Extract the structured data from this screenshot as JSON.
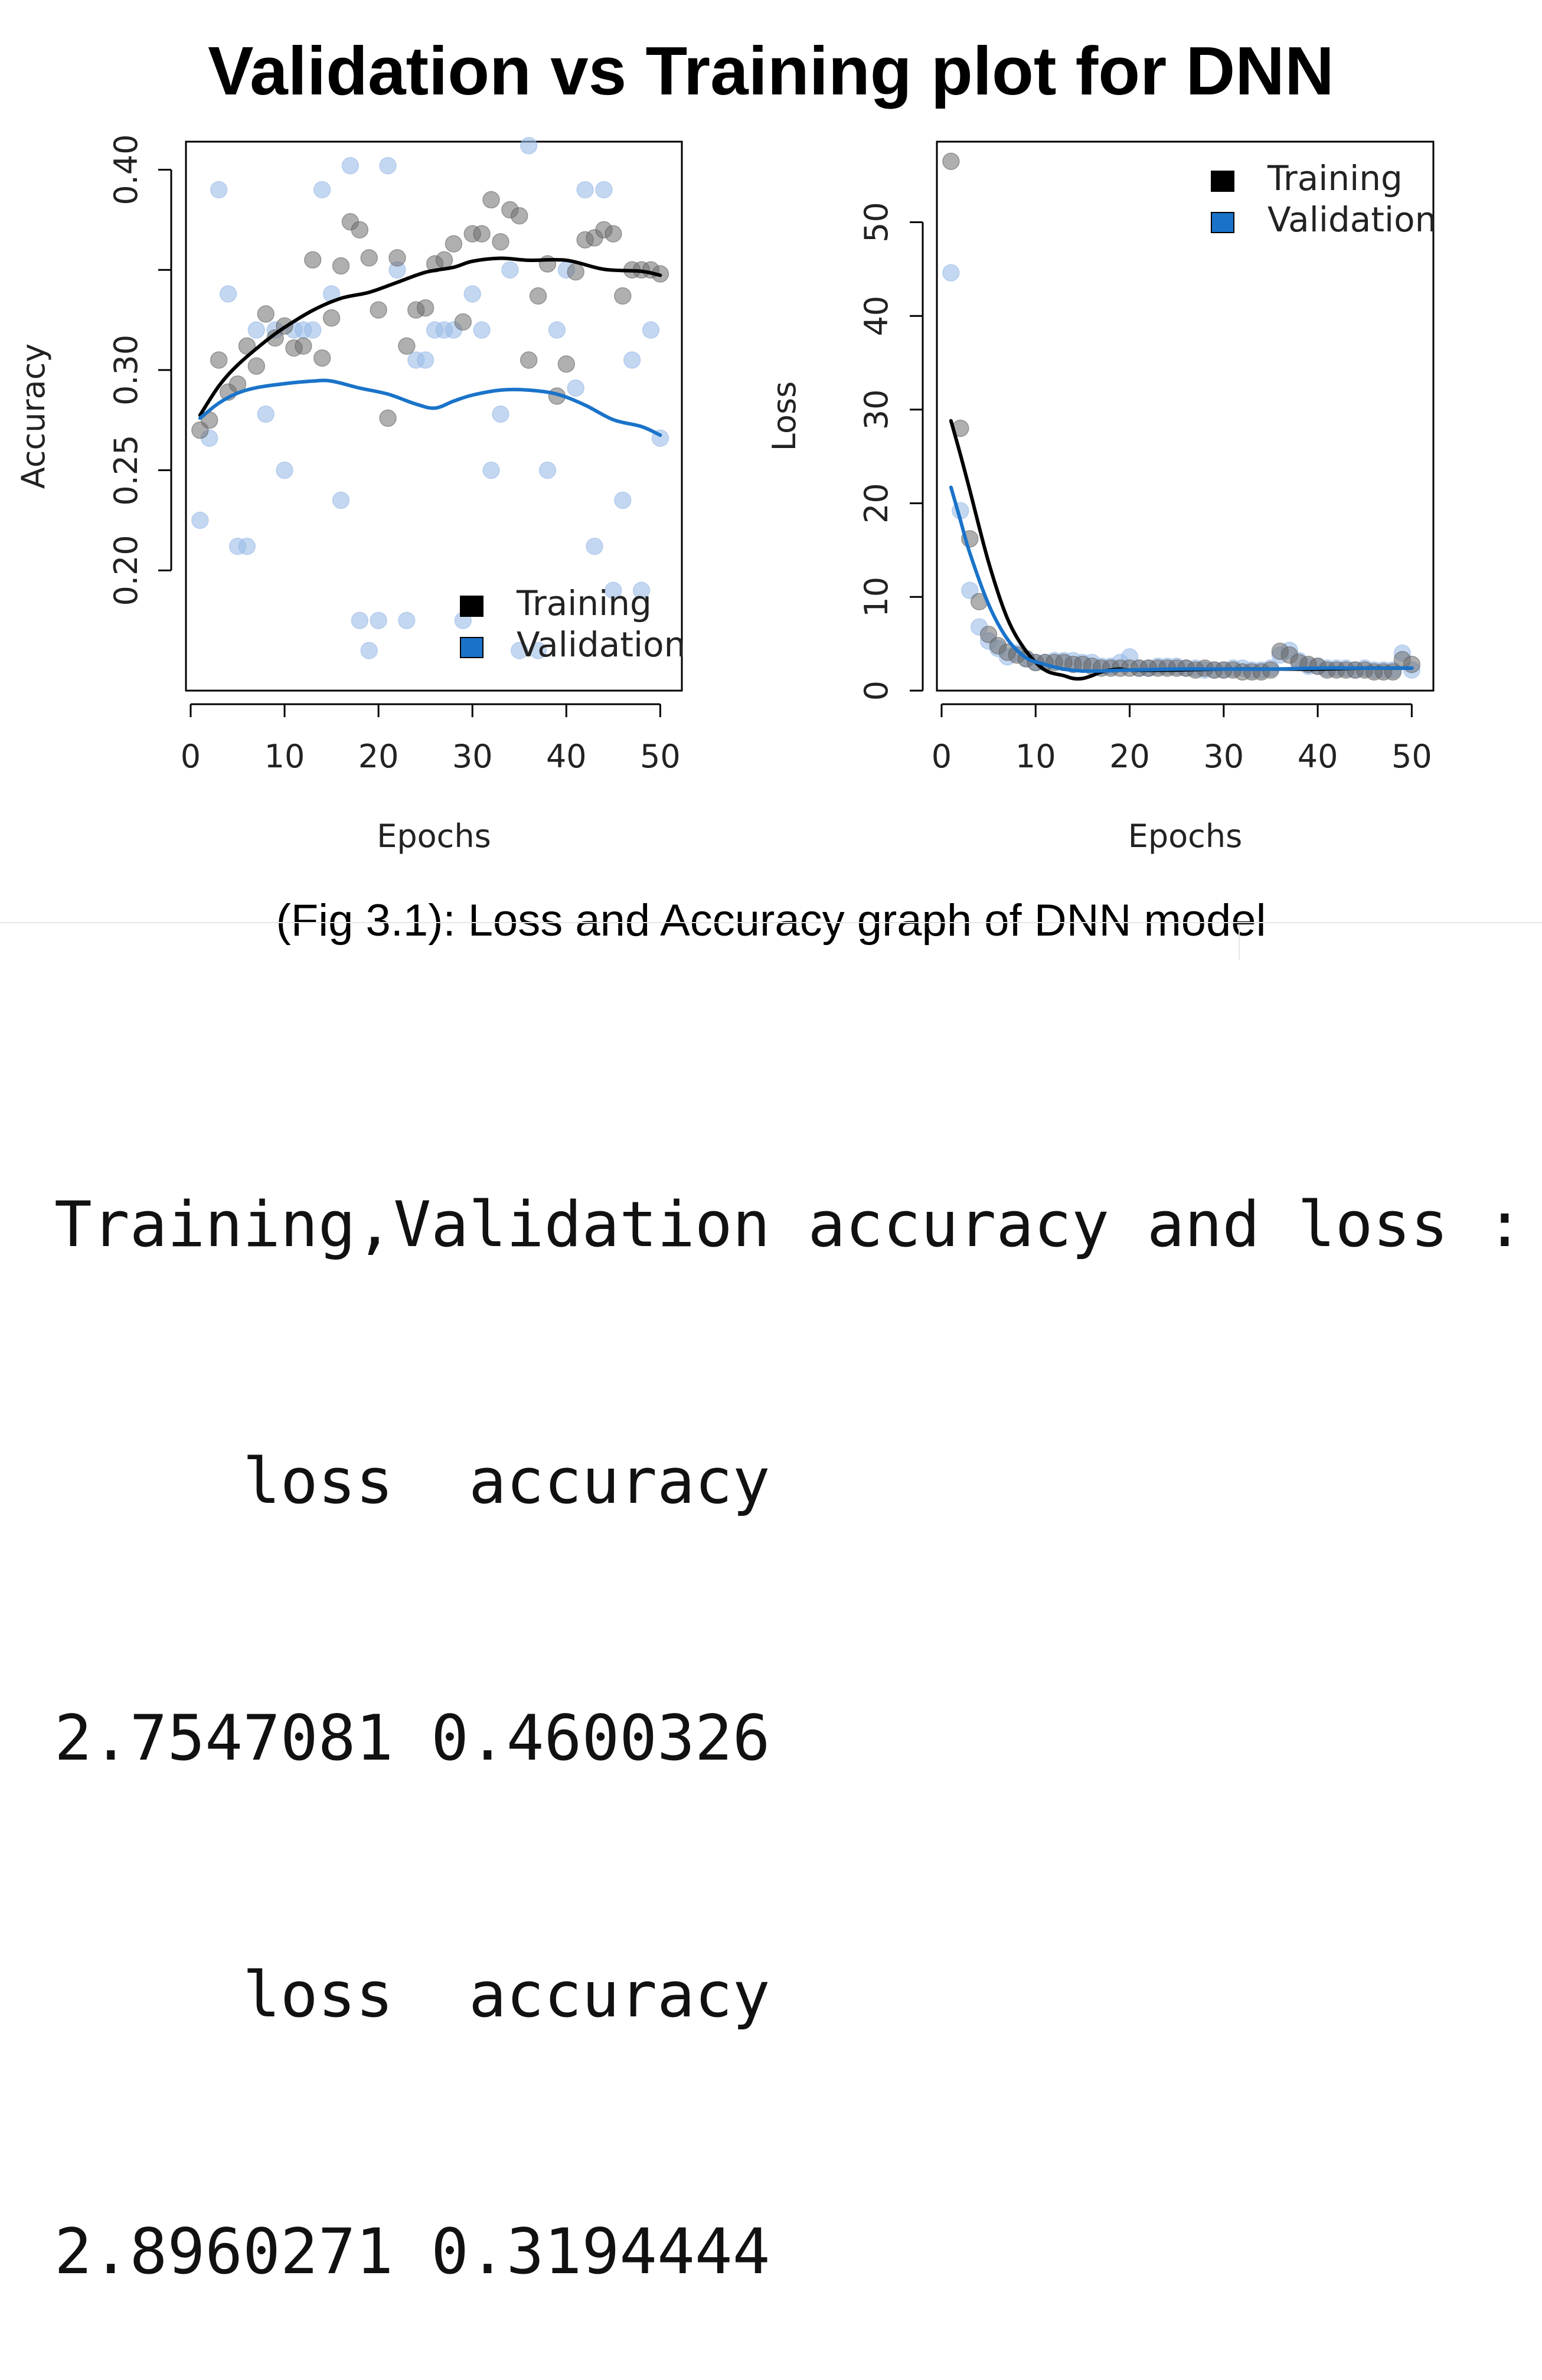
{
  "page": {
    "title": "Validation vs Training plot for DNN",
    "caption": "(Fig 3.1): Loss and Accuracy graph of DNN model"
  },
  "colors": {
    "training_line": "#000000",
    "validation_line": "#1a73c9",
    "training_points": "#6e6e6e",
    "validation_points": "#9bbde8"
  },
  "chart_data": [
    {
      "type": "scatter",
      "title": "",
      "xlabel": "Epochs",
      "ylabel": "Accuracy",
      "xlim": [
        -0.5,
        52.3
      ],
      "ylim": [
        0.14,
        0.414
      ],
      "xticks": [
        0,
        10,
        20,
        30,
        40,
        50
      ],
      "yticks": [
        0.2,
        0.25,
        0.3,
        0.4
      ],
      "ytick_labels": [
        "0.20",
        "0.25",
        "0.30",
        "0.40"
      ],
      "legend_position": "bottom-right",
      "legend": [
        "Training",
        "Validation"
      ],
      "series": [
        {
          "name": "Training",
          "kind": "points",
          "x": [
            1,
            2,
            3,
            4,
            5,
            6,
            7,
            8,
            9,
            10,
            11,
            12,
            13,
            14,
            15,
            16,
            17,
            18,
            19,
            20,
            21,
            22,
            23,
            24,
            25,
            26,
            27,
            28,
            29,
            30,
            31,
            32,
            33,
            34,
            35,
            36,
            37,
            38,
            39,
            40,
            41,
            42,
            43,
            44,
            45,
            46,
            47,
            48,
            49,
            50
          ],
          "values": [
            0.27,
            0.275,
            0.305,
            0.289,
            0.293,
            0.312,
            0.302,
            0.328,
            0.316,
            0.322,
            0.311,
            0.312,
            0.355,
            0.306,
            0.326,
            0.352,
            0.374,
            0.37,
            0.356,
            0.33,
            0.276,
            0.356,
            0.312,
            0.33,
            0.331,
            0.353,
            0.355,
            0.363,
            0.324,
            0.368,
            0.368,
            0.385,
            0.364,
            0.38,
            0.377,
            0.305,
            0.337,
            0.353,
            0.287,
            0.303,
            0.349,
            0.365,
            0.366,
            0.37,
            0.368,
            0.337,
            0.35,
            0.35,
            0.35,
            0.348
          ]
        },
        {
          "name": "Validation",
          "kind": "points",
          "x": [
            1,
            2,
            3,
            4,
            5,
            6,
            7,
            8,
            9,
            10,
            11,
            12,
            13,
            14,
            15,
            16,
            17,
            18,
            19,
            20,
            21,
            22,
            23,
            24,
            25,
            26,
            27,
            28,
            29,
            30,
            31,
            32,
            33,
            34,
            35,
            36,
            37,
            38,
            39,
            40,
            41,
            42,
            43,
            44,
            45,
            46,
            47,
            48,
            49,
            50
          ],
          "values": [
            0.225,
            0.266,
            0.39,
            0.338,
            0.212,
            0.212,
            0.32,
            0.278,
            0.32,
            0.25,
            0.32,
            0.32,
            0.32,
            0.39,
            0.338,
            0.235,
            0.402,
            0.175,
            0.16,
            0.175,
            0.402,
            0.35,
            0.175,
            0.305,
            0.305,
            0.32,
            0.32,
            0.32,
            0.175,
            0.338,
            0.32,
            0.25,
            0.278,
            0.35,
            0.16,
            0.412,
            0.16,
            0.25,
            0.32,
            0.35,
            0.291,
            0.39,
            0.212,
            0.39,
            0.19,
            0.235,
            0.305,
            0.19,
            0.32,
            0.266
          ]
        },
        {
          "name": "Training",
          "kind": "smooth",
          "x": [
            1,
            3,
            5,
            8,
            10,
            13,
            16,
            19,
            22,
            25,
            28,
            30,
            33,
            36,
            40,
            44,
            48,
            50
          ],
          "values": [
            0.2775,
            0.292,
            0.3025,
            0.3145,
            0.3213,
            0.3298,
            0.3358,
            0.3388,
            0.3438,
            0.3488,
            0.3513,
            0.3543,
            0.3558,
            0.3548,
            0.3548,
            0.3503,
            0.3493,
            0.3473
          ]
        },
        {
          "name": "Validation",
          "kind": "smooth",
          "x": [
            1,
            3,
            5,
            7,
            10,
            13,
            15,
            18,
            21,
            24,
            26,
            28,
            30,
            33,
            36,
            39,
            42,
            45,
            48,
            50
          ],
          "values": [
            0.276,
            0.2835,
            0.2885,
            0.2912,
            0.2932,
            0.2945,
            0.2945,
            0.291,
            0.288,
            0.283,
            0.281,
            0.2845,
            0.2875,
            0.29,
            0.29,
            0.288,
            0.2825,
            0.2752,
            0.2718,
            0.2675
          ]
        }
      ]
    },
    {
      "type": "scatter",
      "title": "",
      "xlabel": "Epochs",
      "ylabel": "Loss",
      "xlim": [
        -0.5,
        52.3
      ],
      "ylim": [
        0,
        58.6
      ],
      "xticks": [
        0,
        10,
        20,
        30,
        40,
        50
      ],
      "yticks": [
        0,
        10,
        20,
        30,
        40,
        50
      ],
      "ytick_labels": [
        "0",
        "10",
        "20",
        "30",
        "40",
        "50"
      ],
      "legend_position": "top-right",
      "legend": [
        "Training",
        "Validation"
      ],
      "series": [
        {
          "name": "Training",
          "kind": "points",
          "x": [
            1,
            2,
            3,
            4,
            5,
            6,
            7,
            8,
            9,
            10,
            11,
            12,
            13,
            14,
            15,
            16,
            17,
            18,
            19,
            20,
            21,
            22,
            23,
            24,
            25,
            26,
            27,
            28,
            29,
            30,
            31,
            32,
            33,
            34,
            35,
            36,
            37,
            38,
            39,
            40,
            41,
            42,
            43,
            44,
            45,
            46,
            47,
            48,
            49,
            50
          ],
          "values": [
            56.5,
            28,
            16.2,
            9.5,
            6,
            4.8,
            4.1,
            3.8,
            3.4,
            3.0,
            3.0,
            3.0,
            3.0,
            2.8,
            2.8,
            2.6,
            2.4,
            2.4,
            2.4,
            2.4,
            2.4,
            2.4,
            2.4,
            2.4,
            2.4,
            2.4,
            2.2,
            2.4,
            2.2,
            2.2,
            2.2,
            2.0,
            2.0,
            2.0,
            2.2,
            4.2,
            3.8,
            3.0,
            2.8,
            2.6,
            2.2,
            2.2,
            2.2,
            2.2,
            2.2,
            2.0,
            2.0,
            2.0,
            3.3,
            2.8
          ]
        },
        {
          "name": "Validation",
          "kind": "points",
          "x": [
            1,
            2,
            3,
            4,
            5,
            6,
            7,
            8,
            9,
            10,
            11,
            12,
            13,
            14,
            15,
            16,
            17,
            18,
            19,
            20,
            21,
            22,
            23,
            24,
            25,
            26,
            27,
            28,
            29,
            30,
            31,
            32,
            33,
            34,
            35,
            36,
            37,
            38,
            39,
            40,
            41,
            42,
            43,
            44,
            45,
            46,
            47,
            48,
            49,
            50
          ],
          "values": [
            44.6,
            19.2,
            10.7,
            6.8,
            5.3,
            4.5,
            3.6,
            4.0,
            3.4,
            3.0,
            3.0,
            3.2,
            3.2,
            3.2,
            3.0,
            3.0,
            2.6,
            2.6,
            3.0,
            3.6,
            2.4,
            2.4,
            2.6,
            2.6,
            2.6,
            2.4,
            2.4,
            2.2,
            2.2,
            2.2,
            2.4,
            2.4,
            2.2,
            2.2,
            2.4,
            3.8,
            4.3,
            3.2,
            2.6,
            2.6,
            2.4,
            2.4,
            2.4,
            2.2,
            2.4,
            2.2,
            2.2,
            2.2,
            4.0,
            2.2
          ]
        },
        {
          "name": "Training",
          "kind": "smooth",
          "x": [
            1,
            2,
            3,
            5,
            7,
            9,
            11,
            13,
            14,
            15,
            16,
            17,
            18,
            19,
            20,
            25,
            30,
            35,
            40,
            45,
            50
          ],
          "values": [
            28.8,
            25.2,
            21.4,
            13.7,
            7.7,
            4.2,
            2.2,
            1.6,
            1.3,
            1.3,
            1.6,
            2.0,
            2.2,
            2.3,
            2.2,
            2.2,
            2.3,
            2.3,
            2.3,
            2.4,
            2.4
          ]
        },
        {
          "name": "Validation",
          "kind": "smooth",
          "x": [
            1,
            2,
            3,
            5,
            7,
            9,
            11,
            13,
            15,
            17,
            20,
            25,
            30,
            35,
            40,
            45,
            50
          ],
          "values": [
            21.7,
            18.2,
            14.7,
            9.2,
            5.5,
            3.5,
            2.8,
            2.3,
            2.1,
            2.1,
            2.2,
            2.3,
            2.3,
            2.3,
            2.4,
            2.4,
            2.4
          ]
        }
      ]
    }
  ],
  "console": {
    "lines": [
      "Training,Validation accuracy and loss :",
      "     loss  accuracy",
      "2.7547081 0.4600326",
      "     loss  accuracy",
      "2.8960271 0.3194444"
    ]
  }
}
